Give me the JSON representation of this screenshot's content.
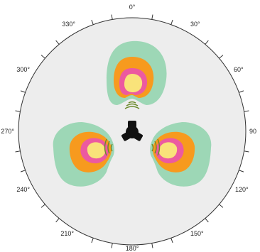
{
  "angle_labels": [
    "0°",
    "30°",
    "60°",
    "90",
    "120°",
    "150°",
    "180°",
    "210°",
    "240°",
    "270°",
    "300°",
    "330°"
  ],
  "zone_colors": {
    "background": "#ededed",
    "outer": "#9dd7b6",
    "middle": "#f79a1e",
    "inner": "#ec5aa0",
    "core": "#f9e37a"
  },
  "icons": [
    "speaker-tri-icon",
    "sound-wave-icon"
  ]
}
